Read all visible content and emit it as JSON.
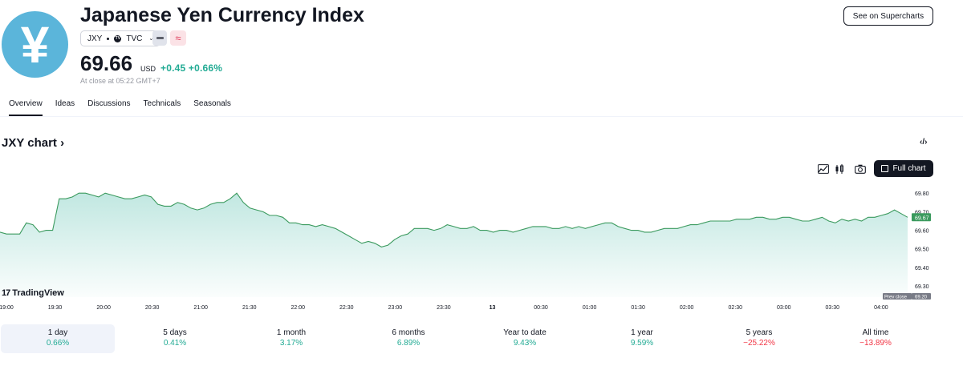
{
  "header": {
    "logo_glyph": "¥",
    "title": "Japanese Yen Currency Index",
    "ticker": "JXY",
    "exchange": "TVC",
    "exchange_badge": "TV",
    "price": "69.66",
    "currency": "USD",
    "change": "+0.45 +0.66%",
    "close_note": "At close at 05:22 GMT+7",
    "supercharts_label": "See on Supercharts"
  },
  "tabs": [
    {
      "label": "Overview",
      "active": true
    },
    {
      "label": "Ideas"
    },
    {
      "label": "Discussions"
    },
    {
      "label": "Technicals"
    },
    {
      "label": "Seasonals"
    }
  ],
  "chart_section": {
    "title": "JXY chart ›",
    "embed_icon": "‹/›",
    "full_chart_label": "Full chart",
    "tv_logo": "TradingView",
    "tv_mark": "17"
  },
  "chart_data": {
    "type": "area",
    "line_color": "#3b9a5e",
    "fill_color": "#22ab94",
    "x_ticks": [
      "19:00",
      "19:30",
      "20:00",
      "20:30",
      "21:00",
      "21:30",
      "22:00",
      "22:30",
      "23:00",
      "23:30",
      "13",
      "00:30",
      "01:00",
      "01:30",
      "02:00",
      "02:30",
      "03:00",
      "03:30",
      "04:00"
    ],
    "y_ticks": [
      "69.80",
      "69.70",
      "69.60",
      "69.50",
      "69.40",
      "69.30"
    ],
    "ylim": [
      69.24,
      69.87
    ],
    "current_price_label": "69.67",
    "prev_close_text": "Prev close",
    "prev_close_value": "69.20",
    "values": [
      69.59,
      69.58,
      69.58,
      69.58,
      69.64,
      69.63,
      69.59,
      69.6,
      69.6,
      69.77,
      69.77,
      69.78,
      69.8,
      69.8,
      69.79,
      69.78,
      69.8,
      69.79,
      69.78,
      69.77,
      69.77,
      69.78,
      69.79,
      69.78,
      69.74,
      69.73,
      69.73,
      69.75,
      69.74,
      69.72,
      69.71,
      69.72,
      69.74,
      69.75,
      69.75,
      69.77,
      69.8,
      69.75,
      69.72,
      69.71,
      69.7,
      69.68,
      69.68,
      69.67,
      69.64,
      69.64,
      69.63,
      69.63,
      69.62,
      69.63,
      69.62,
      69.61,
      69.59,
      69.57,
      69.55,
      69.53,
      69.54,
      69.53,
      69.51,
      69.52,
      69.55,
      69.57,
      69.58,
      69.61,
      69.61,
      69.61,
      69.6,
      69.61,
      69.63,
      69.62,
      69.61,
      69.61,
      69.62,
      69.6,
      69.6,
      69.59,
      69.6,
      69.6,
      69.59,
      69.6,
      69.61,
      69.62,
      69.62,
      69.62,
      69.61,
      69.61,
      69.62,
      69.61,
      69.62,
      69.61,
      69.62,
      69.63,
      69.64,
      69.64,
      69.62,
      69.61,
      69.6,
      69.6,
      69.59,
      69.59,
      69.6,
      69.61,
      69.61,
      69.61,
      69.62,
      69.63,
      69.63,
      69.64,
      69.65,
      69.65,
      69.65,
      69.65,
      69.66,
      69.66,
      69.66,
      69.67,
      69.67,
      69.66,
      69.66,
      69.67,
      69.67,
      69.66,
      69.65,
      69.65,
      69.66,
      69.67,
      69.65,
      69.64,
      69.66,
      69.65,
      69.66,
      69.65,
      69.67,
      69.67,
      69.68,
      69.69,
      69.71,
      69.69,
      69.67
    ]
  },
  "ranges": [
    {
      "label": "1 day",
      "value": "0.66%",
      "sign": "pos",
      "active": true
    },
    {
      "label": "5 days",
      "value": "0.41%",
      "sign": "pos"
    },
    {
      "label": "1 month",
      "value": "3.17%",
      "sign": "pos"
    },
    {
      "label": "6 months",
      "value": "6.89%",
      "sign": "pos"
    },
    {
      "label": "Year to date",
      "value": "9.43%",
      "sign": "pos"
    },
    {
      "label": "1 year",
      "value": "9.59%",
      "sign": "pos"
    },
    {
      "label": "5 years",
      "value": "−25.22%",
      "sign": "neg"
    },
    {
      "label": "All time",
      "value": "−13.89%",
      "sign": "neg"
    }
  ]
}
